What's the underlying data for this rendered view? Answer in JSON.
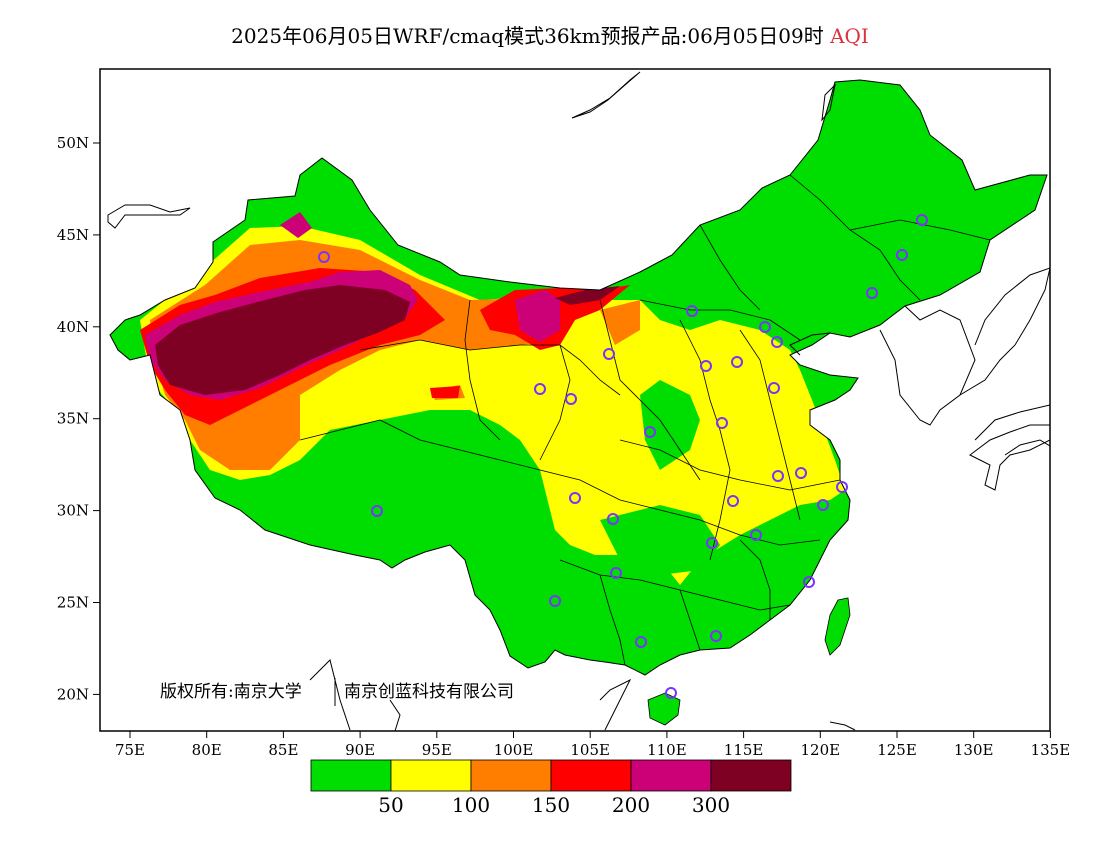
{
  "title": {
    "main": "2025年06月05日WRF/cmaq模式36km预报产品:06月05日09时",
    "variable": "AQI"
  },
  "axes": {
    "lat_labels": [
      "50N",
      "45N",
      "40N",
      "35N",
      "30N",
      "25N",
      "20N"
    ],
    "lon_labels": [
      "75E",
      "80E",
      "85E",
      "90E",
      "95E",
      "100E",
      "105E",
      "110E",
      "115E",
      "120E",
      "125E",
      "130E",
      "135E"
    ]
  },
  "copyright": {
    "part1": "版权所有:南京大学",
    "part2": "南京创蓝科技有限公司"
  },
  "legend": {
    "colors": [
      "#00dd00",
      "#ffff00",
      "#ff7e00",
      "#ff0000",
      "#cc0077",
      "#7e0023"
    ],
    "labels": [
      "50",
      "100",
      "150",
      "200",
      "300"
    ]
  },
  "colors": {
    "background": "#ffffff",
    "station_marker": "#7a33ff"
  }
}
